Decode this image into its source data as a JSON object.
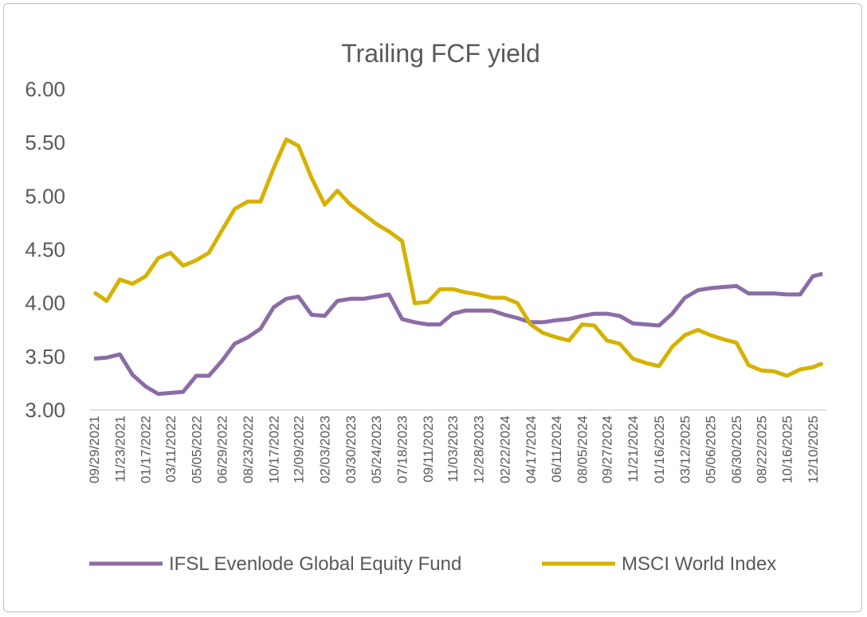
{
  "chart_data": {
    "type": "line",
    "title": "Trailing FCF yield",
    "xlabel": "",
    "ylabel": "",
    "ylim": [
      3.0,
      6.0
    ],
    "yticks": [
      "3.00",
      "3.50",
      "4.00",
      "4.50",
      "5.00",
      "5.50",
      "6.00"
    ],
    "grid": false,
    "legend_position": "bottom",
    "xtick_labels": [
      "09/29/2021",
      "11/23/2021",
      "01/17/2022",
      "03/11/2022",
      "05/05/2022",
      "06/29/2022",
      "08/23/2022",
      "10/17/2022",
      "12/09/2022",
      "02/03/2023",
      "03/30/2023",
      "05/24/2023",
      "07/18/2023",
      "09/11/2023",
      "11/03/2023",
      "12/28/2023",
      "02/22/2024",
      "04/17/2024",
      "06/11/2024",
      "08/05/2024",
      "09/27/2024",
      "11/21/2024",
      "01/16/2025",
      "03/12/2025",
      "05/06/2025",
      "06/30/2025",
      "08/22/2025",
      "10/16/2025",
      "12/10/2025"
    ],
    "x": [
      "09/29/2021",
      "10/26/2021",
      "11/23/2021",
      "12/20/2021",
      "01/17/2022",
      "02/13/2022",
      "03/11/2022",
      "04/07/2022",
      "05/05/2022",
      "06/01/2022",
      "06/29/2022",
      "07/26/2022",
      "08/23/2022",
      "09/19/2022",
      "10/17/2022",
      "11/13/2022",
      "12/09/2022",
      "01/06/2023",
      "02/03/2023",
      "03/02/2023",
      "03/30/2023",
      "04/27/2023",
      "05/24/2023",
      "06/20/2023",
      "07/18/2023",
      "08/14/2023",
      "09/11/2023",
      "10/07/2023",
      "11/03/2023",
      "11/30/2023",
      "12/28/2023",
      "01/25/2024",
      "02/22/2024",
      "03/20/2024",
      "04/17/2024",
      "05/14/2024",
      "06/11/2024",
      "07/08/2024",
      "08/05/2024",
      "08/31/2024",
      "09/27/2024",
      "10/24/2024",
      "11/21/2024",
      "12/19/2024",
      "01/16/2025",
      "02/13/2025",
      "03/12/2025",
      "04/09/2025",
      "05/06/2025",
      "06/03/2025",
      "06/30/2025",
      "07/26/2025",
      "08/22/2025",
      "09/19/2025",
      "10/16/2025",
      "11/13/2025",
      "12/10/2025",
      "12/27/2025",
      "12/31/2025"
    ],
    "series": [
      {
        "name": "IFSL Evenlode Global Equity Fund",
        "color": "#8c6ca6",
        "values": [
          3.48,
          3.49,
          3.52,
          3.33,
          3.22,
          3.15,
          3.16,
          3.17,
          3.32,
          3.32,
          3.46,
          3.62,
          3.68,
          3.76,
          3.96,
          4.04,
          4.06,
          3.89,
          3.88,
          4.02,
          4.04,
          4.04,
          4.06,
          4.08,
          3.85,
          3.82,
          3.8,
          3.8,
          3.9,
          3.93,
          3.93,
          3.93,
          3.89,
          3.86,
          3.82,
          3.82,
          3.84,
          3.85,
          3.88,
          3.9,
          3.9,
          3.88,
          3.81,
          3.8,
          3.79,
          3.9,
          4.05,
          4.12,
          4.14,
          4.15,
          4.16,
          4.09,
          4.09,
          4.09,
          4.08,
          4.08,
          4.25,
          4.27,
          4.27
        ]
      },
      {
        "name": "MSCI World Index",
        "color": "#d6b200",
        "values": [
          4.1,
          4.02,
          4.22,
          4.18,
          4.25,
          4.42,
          4.47,
          4.35,
          4.4,
          4.47,
          4.68,
          4.88,
          4.95,
          4.95,
          5.26,
          5.53,
          5.47,
          5.17,
          4.92,
          5.05,
          4.92,
          4.83,
          4.74,
          4.67,
          4.58,
          4.0,
          4.01,
          4.13,
          4.13,
          4.1,
          4.08,
          4.05,
          4.05,
          4.0,
          3.8,
          3.72,
          3.68,
          3.65,
          3.8,
          3.79,
          3.65,
          3.62,
          3.48,
          3.44,
          3.41,
          3.59,
          3.7,
          3.75,
          3.7,
          3.66,
          3.63,
          3.42,
          3.37,
          3.36,
          3.32,
          3.38,
          3.4,
          3.43,
          3.42
        ]
      }
    ]
  }
}
